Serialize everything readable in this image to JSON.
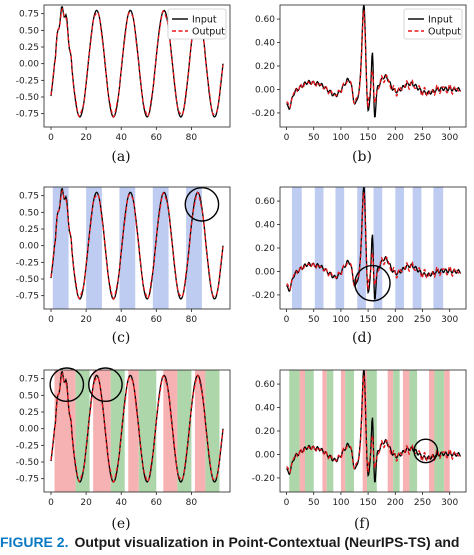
{
  "caption": {
    "figure_label": "FIGURE 2.",
    "text": "Output visualization in Point-Contextual (NeurIPS-TS) and"
  },
  "colors": {
    "input": "#000000",
    "output": "#e8161b",
    "window_blue": "#b4c3ee",
    "window_green": "#9fcf9c",
    "window_red": "#f4a5a5",
    "circle": "#000000"
  },
  "chart_data": [
    {
      "id": "a",
      "panel_label": "(a)",
      "type": "line",
      "signal": "sine",
      "x_ticks": [
        0,
        20,
        40,
        60,
        80
      ],
      "y_ticks": [
        0.75,
        0.5,
        0.25,
        0.0,
        -0.25,
        -0.5,
        -0.75
      ],
      "xlim": [
        -4,
        102
      ],
      "ylim": [
        -0.95,
        0.88
      ],
      "legend": [
        "Input",
        "Output"
      ],
      "legend_position": "top-right",
      "series": [
        {
          "name": "Input"
        },
        {
          "name": "Output"
        }
      ],
      "windows": [],
      "circles": []
    },
    {
      "id": "b",
      "panel_label": "(b)",
      "type": "line",
      "signal": "ecg",
      "x_ticks": [
        0,
        50,
        100,
        150,
        200,
        250,
        300
      ],
      "y_ticks": [
        0.6,
        0.4,
        0.2,
        0.0,
        -0.2
      ],
      "xlim": [
        -12,
        330
      ],
      "ylim": [
        -0.32,
        0.72
      ],
      "legend": [
        "Input",
        "Output"
      ],
      "legend_position": "top-right",
      "series": [
        {
          "name": "Input"
        },
        {
          "name": "Output"
        }
      ],
      "windows": [],
      "circles": []
    },
    {
      "id": "c",
      "panel_label": "(c)",
      "type": "line",
      "signal": "sine",
      "x_ticks": [
        0,
        20,
        40,
        60,
        80
      ],
      "y_ticks": [
        0.75,
        0.5,
        0.25,
        0.0,
        -0.25,
        -0.5,
        -0.75
      ],
      "xlim": [
        -4,
        102
      ],
      "ylim": [
        -0.95,
        0.88
      ],
      "legend": [],
      "legend_position": "none",
      "series": [
        {
          "name": "Input"
        },
        {
          "name": "Output"
        }
      ],
      "windows": [
        {
          "start": 1,
          "end": 10,
          "kind": "blue"
        },
        {
          "start": 20,
          "end": 29,
          "kind": "blue"
        },
        {
          "start": 39,
          "end": 48,
          "kind": "blue"
        },
        {
          "start": 58,
          "end": 67,
          "kind": "blue"
        },
        {
          "start": 77,
          "end": 86,
          "kind": "blue"
        }
      ],
      "circles": [
        {
          "x": 86,
          "y": 0.62,
          "rx": 7,
          "ry": 0.25
        }
      ]
    },
    {
      "id": "d",
      "panel_label": "(d)",
      "type": "line",
      "signal": "ecg",
      "x_ticks": [
        0,
        50,
        100,
        150,
        200,
        250,
        300
      ],
      "y_ticks": [
        0.6,
        0.4,
        0.2,
        0.0,
        -0.2
      ],
      "xlim": [
        -12,
        330
      ],
      "ylim": [
        -0.32,
        0.72
      ],
      "legend": [],
      "legend_position": "none",
      "series": [
        {
          "name": "Input"
        },
        {
          "name": "Output"
        }
      ],
      "windows": [
        {
          "start": 10,
          "end": 28,
          "kind": "blue"
        },
        {
          "start": 52,
          "end": 68,
          "kind": "blue"
        },
        {
          "start": 90,
          "end": 106,
          "kind": "blue"
        },
        {
          "start": 130,
          "end": 146,
          "kind": "blue"
        },
        {
          "start": 160,
          "end": 176,
          "kind": "blue"
        },
        {
          "start": 200,
          "end": 216,
          "kind": "blue"
        },
        {
          "start": 232,
          "end": 248,
          "kind": "blue"
        },
        {
          "start": 270,
          "end": 288,
          "kind": "blue"
        }
      ],
      "circles": [
        {
          "x": 158,
          "y": -0.1,
          "rx": 22,
          "ry": 0.15
        }
      ]
    },
    {
      "id": "e",
      "panel_label": "(e)",
      "type": "line",
      "signal": "sine",
      "x_ticks": [
        0,
        20,
        40,
        60,
        80
      ],
      "y_ticks": [
        0.75,
        0.5,
        0.25,
        0.0,
        -0.25,
        -0.5,
        -0.75
      ],
      "xlim": [
        -4,
        102
      ],
      "ylim": [
        -0.95,
        0.88
      ],
      "legend": [],
      "legend_position": "none",
      "series": [
        {
          "name": "Input"
        },
        {
          "name": "Output"
        }
      ],
      "windows": [
        {
          "start": 2,
          "end": 14,
          "kind": "red"
        },
        {
          "start": 14,
          "end": 22,
          "kind": "green"
        },
        {
          "start": 24,
          "end": 34,
          "kind": "red"
        },
        {
          "start": 34,
          "end": 42,
          "kind": "green"
        },
        {
          "start": 44,
          "end": 50,
          "kind": "red"
        },
        {
          "start": 50,
          "end": 60,
          "kind": "green"
        },
        {
          "start": 64,
          "end": 72,
          "kind": "red"
        },
        {
          "start": 72,
          "end": 80,
          "kind": "green"
        },
        {
          "start": 82,
          "end": 88,
          "kind": "red"
        },
        {
          "start": 88,
          "end": 96,
          "kind": "green"
        }
      ],
      "circles": [
        {
          "x": 9,
          "y": 0.66,
          "rx": 7,
          "ry": 0.25
        },
        {
          "x": 31,
          "y": 0.66,
          "rx": 7,
          "ry": 0.25
        }
      ]
    },
    {
      "id": "f",
      "panel_label": "(f)",
      "type": "line",
      "signal": "ecg",
      "x_ticks": [
        0,
        50,
        100,
        150,
        200,
        250,
        300
      ],
      "y_ticks": [
        0.6,
        0.4,
        0.2,
        0.0,
        -0.2
      ],
      "xlim": [
        -12,
        330
      ],
      "ylim": [
        -0.32,
        0.72
      ],
      "legend": [],
      "legend_position": "none",
      "series": [
        {
          "name": "Input"
        },
        {
          "name": "Output"
        }
      ],
      "windows": [
        {
          "start": 5,
          "end": 24,
          "kind": "green"
        },
        {
          "start": 24,
          "end": 34,
          "kind": "red"
        },
        {
          "start": 34,
          "end": 50,
          "kind": "green"
        },
        {
          "start": 66,
          "end": 74,
          "kind": "red"
        },
        {
          "start": 74,
          "end": 86,
          "kind": "green"
        },
        {
          "start": 100,
          "end": 108,
          "kind": "red"
        },
        {
          "start": 108,
          "end": 124,
          "kind": "green"
        },
        {
          "start": 140,
          "end": 148,
          "kind": "red"
        },
        {
          "start": 148,
          "end": 166,
          "kind": "green"
        },
        {
          "start": 186,
          "end": 196,
          "kind": "red"
        },
        {
          "start": 196,
          "end": 208,
          "kind": "green"
        },
        {
          "start": 214,
          "end": 226,
          "kind": "red"
        },
        {
          "start": 226,
          "end": 240,
          "kind": "green"
        },
        {
          "start": 262,
          "end": 272,
          "kind": "red"
        },
        {
          "start": 272,
          "end": 290,
          "kind": "green"
        },
        {
          "start": 290,
          "end": 300,
          "kind": "red"
        }
      ],
      "circles": [
        {
          "x": 256,
          "y": 0.03,
          "rx": 20,
          "ry": 0.1
        }
      ]
    }
  ]
}
